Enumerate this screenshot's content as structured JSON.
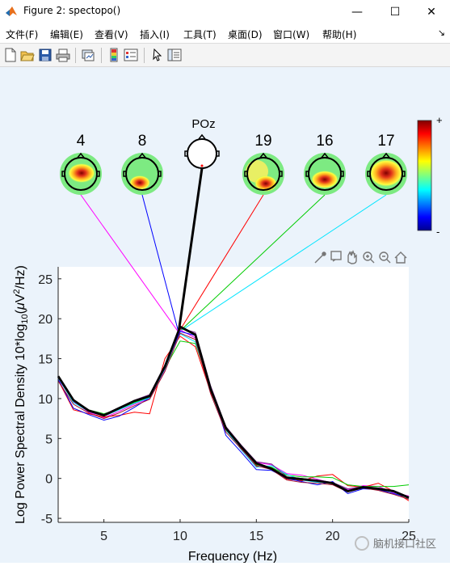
{
  "window": {
    "title": "Figure 2: spectopo()",
    "minimize_glyph": "—",
    "maximize_glyph": "☐",
    "close_glyph": "✕"
  },
  "menu": [
    {
      "label": "文件(F)"
    },
    {
      "label": "编辑(E)"
    },
    {
      "label": "查看(V)"
    },
    {
      "label": "插入(I)"
    },
    {
      "label": "工具(T)"
    },
    {
      "label": "桌面(D)"
    },
    {
      "label": "窗口(W)"
    },
    {
      "label": "帮助(H)"
    }
  ],
  "menu_dock_glyph": "↘",
  "toolbar": {
    "icons": [
      "new-figure-icon",
      "open-file-icon",
      "save-icon",
      "print-icon",
      "link-plot-icon",
      "colorbar-icon",
      "legend-icon",
      "pointer-icon",
      "property-inspector-icon"
    ]
  },
  "axes_toolbar": {
    "icons": [
      "brush-icon",
      "data-tips-icon",
      "pan-icon",
      "zoom-in-icon",
      "zoom-out-icon",
      "home-icon"
    ]
  },
  "colors": {
    "figure_bg": "#ebf3fb",
    "topo_green": "#7dea82",
    "channel_4_line": "#ff00ff",
    "channel_8_line": "#0000ff",
    "channel_19_line": "#ff0000",
    "channel_16_line": "#00cc00",
    "channel_17_line": "#00e5ff",
    "poz_line": "#000000"
  },
  "topoplots": [
    {
      "label": "4",
      "line_color": "#ff00ff"
    },
    {
      "label": "8",
      "line_color": "#0000ff"
    },
    {
      "label": "POz",
      "line_color": "#000000"
    },
    {
      "label": "19",
      "line_color": "#ff0000"
    },
    {
      "label": "16",
      "line_color": "#00cc00"
    },
    {
      "label": "17",
      "line_color": "#00e5ff"
    }
  ],
  "colorbar": {
    "top_label": "+",
    "bottom_label": "-"
  },
  "watermark": "脑机接口社区",
  "chart_data": {
    "type": "line",
    "xlabel": "Frequency (Hz)",
    "ylabel_parts": [
      "Log Power Spectral Density 10*log",
      "10",
      "(",
      "μ",
      "V",
      "2",
      "/Hz)"
    ],
    "xlim": [
      2,
      25
    ],
    "ylim": [
      -5.5,
      26.5
    ],
    "xticks": [
      5,
      10,
      15,
      20,
      25
    ],
    "yticks": [
      -5,
      0,
      5,
      10,
      15,
      20,
      25
    ],
    "x": [
      2,
      3,
      4,
      5,
      6,
      7,
      8,
      9,
      10,
      11,
      12,
      13,
      14,
      15,
      16,
      17,
      18,
      19,
      20,
      21,
      22,
      23,
      24,
      25
    ],
    "series": [
      {
        "color": "#000000",
        "width": 2.8,
        "values": [
          12.8,
          9.8,
          8.5,
          7.9,
          8.8,
          9.7,
          10.3,
          14.0,
          19.0,
          18.0,
          11.2,
          6.3,
          4.0,
          1.9,
          1.2,
          0.1,
          -0.1,
          -0.3,
          -0.6,
          -1.6,
          -1.1,
          -1.3,
          -1.6,
          -2.4
        ]
      },
      {
        "color": "#ff00ff",
        "width": 1,
        "values": [
          12.5,
          9.6,
          8.3,
          7.6,
          8.4,
          9.3,
          10.0,
          13.6,
          18.6,
          17.6,
          11.0,
          6.2,
          4.0,
          2.0,
          1.7,
          0.6,
          0.4,
          -0.1,
          -0.6,
          -1.4,
          -0.9,
          -1.0,
          -1.8,
          -2.2
        ]
      },
      {
        "color": "#ff0000",
        "width": 1,
        "values": [
          12.3,
          8.6,
          8.1,
          7.7,
          7.9,
          8.3,
          8.1,
          15.0,
          17.8,
          16.5,
          10.8,
          6.5,
          3.8,
          1.5,
          1.3,
          -0.1,
          -0.3,
          0.3,
          0.5,
          -0.9,
          -1.1,
          -0.6,
          -1.6,
          -2.8
        ]
      },
      {
        "color": "#0000ff",
        "width": 1,
        "values": [
          12.4,
          8.8,
          8.0,
          7.3,
          7.8,
          8.9,
          10.1,
          14.0,
          18.4,
          17.9,
          11.5,
          5.4,
          3.3,
          1.1,
          1.0,
          0.0,
          -0.4,
          -0.8,
          -0.4,
          -1.9,
          -1.3,
          -1.4,
          -1.9,
          -2.4
        ]
      },
      {
        "color": "#00cc00",
        "width": 1,
        "values": [
          12.7,
          9.7,
          8.6,
          8.1,
          8.7,
          9.5,
          10.2,
          13.8,
          17.2,
          16.9,
          11.3,
          6.0,
          4.1,
          1.7,
          1.4,
          0.4,
          0.2,
          0.2,
          0.1,
          -0.8,
          -1.0,
          -1.0,
          -1.0,
          -0.8
        ]
      },
      {
        "color": "#00e5ff",
        "width": 1,
        "values": [
          12.6,
          9.5,
          8.4,
          7.8,
          8.6,
          9.4,
          10.1,
          13.7,
          18.1,
          17.1,
          11.1,
          6.1,
          3.6,
          1.4,
          1.6,
          0.5,
          -0.2,
          -0.5,
          -0.5,
          -1.5,
          -1.2,
          -1.3,
          -1.7,
          -2.5
        ]
      },
      {
        "color": "#7e2f8e",
        "width": 1,
        "values": [
          12.7,
          9.9,
          8.6,
          8.0,
          8.9,
          9.8,
          10.5,
          14.2,
          18.8,
          18.3,
          11.6,
          6.5,
          4.2,
          2.1,
          1.8,
          0.2,
          0.0,
          -0.2,
          -0.5,
          -1.3,
          -1.0,
          -1.2,
          -1.5,
          -2.3
        ]
      },
      {
        "color": "#a2142f",
        "width": 1,
        "values": [
          12.2,
          9.3,
          8.2,
          7.5,
          8.2,
          9.1,
          9.9,
          13.4,
          18.2,
          17.4,
          10.6,
          5.8,
          3.7,
          1.6,
          1.1,
          -0.2,
          -0.5,
          -0.6,
          -0.8,
          -1.7,
          -1.2,
          -1.5,
          -2.0,
          -2.6
        ]
      }
    ]
  }
}
